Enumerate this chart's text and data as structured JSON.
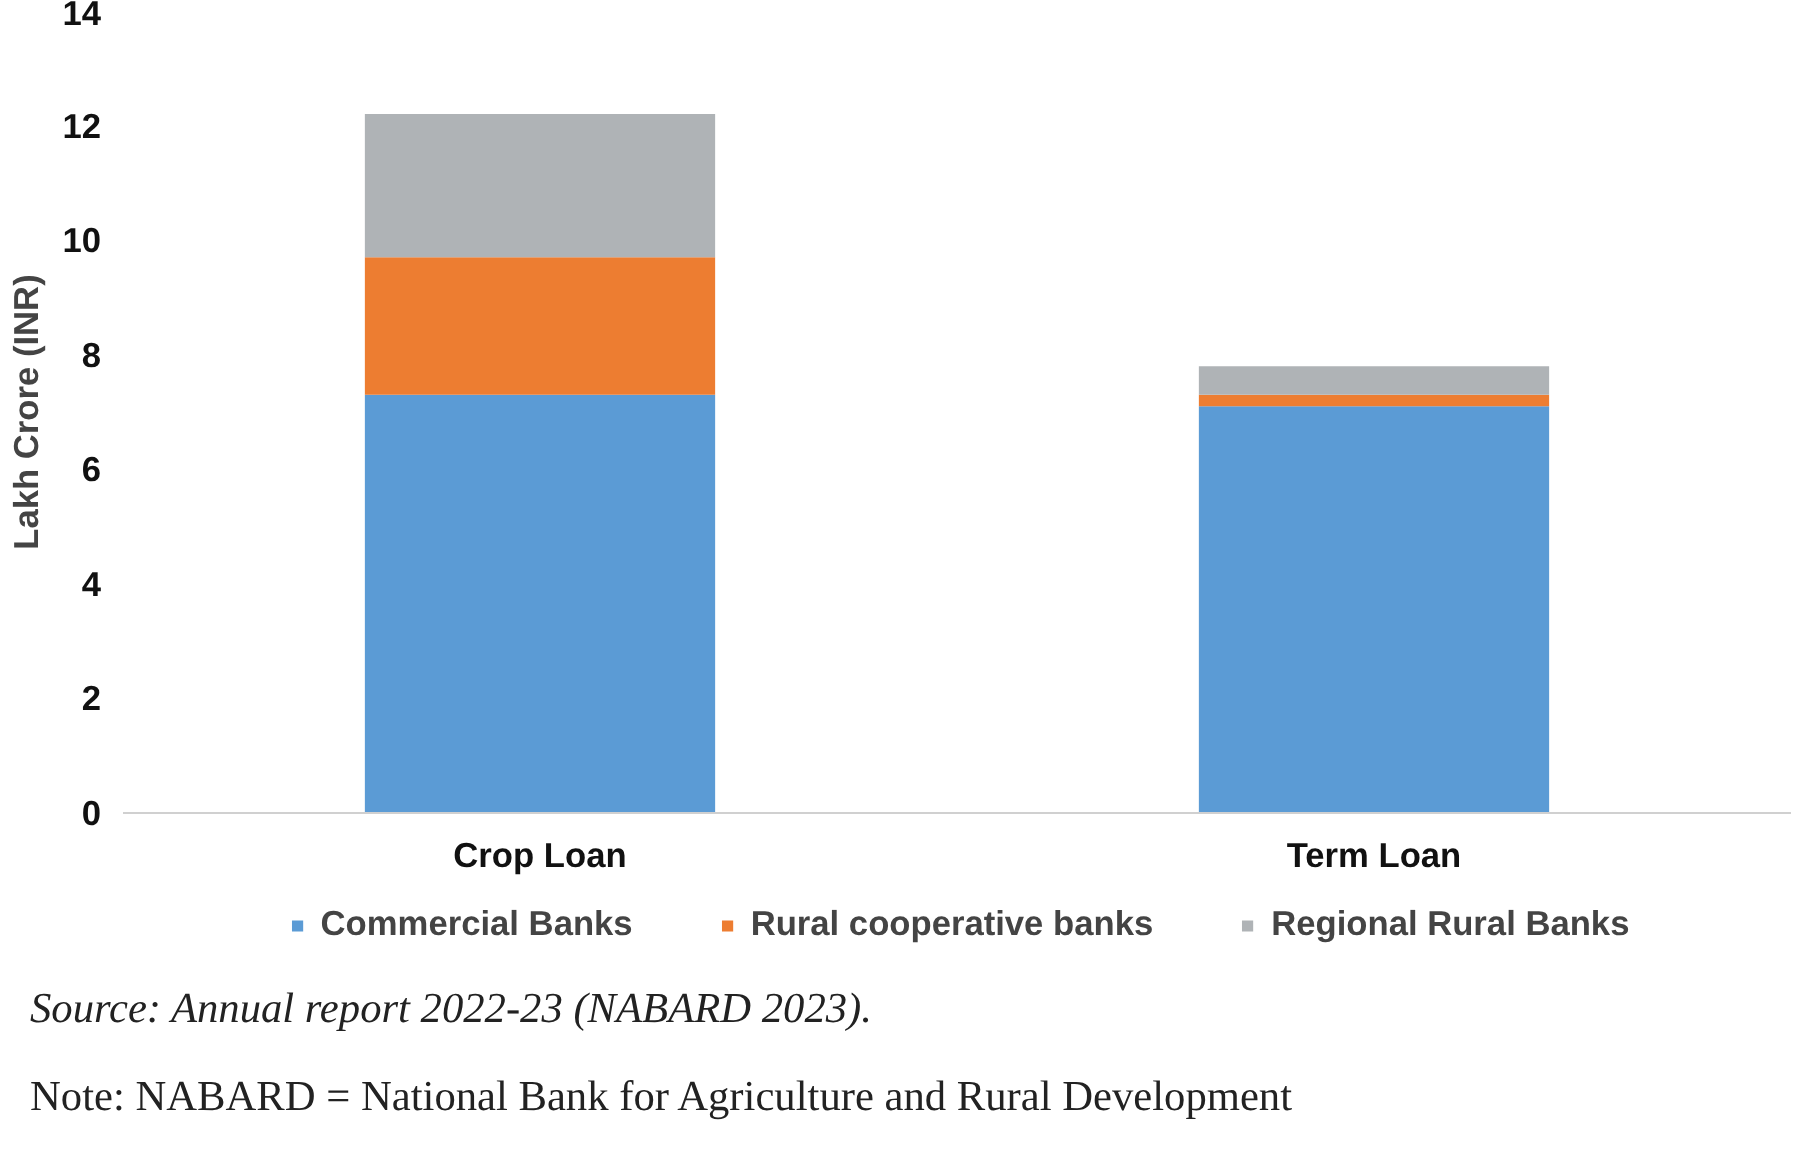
{
  "chart_data": {
    "type": "bar",
    "stacked": true,
    "ylabel": "Lakh Crore (INR)",
    "categories": [
      "Crop Loan",
      "Term Loan"
    ],
    "series": [
      {
        "name": "Commercial Banks",
        "color": "#5b9bd5",
        "values": [
          7.3,
          7.1
        ]
      },
      {
        "name": "Rural cooperative banks",
        "color": "#ed7d31",
        "values": [
          2.4,
          0.2
        ]
      },
      {
        "name": "Regional Rural Banks",
        "color": "#afb3b6",
        "values": [
          2.5,
          0.5
        ]
      }
    ],
    "ylim": [
      0,
      14
    ],
    "yticks": [
      0,
      2,
      4,
      6,
      8,
      10,
      12,
      14
    ],
    "grid": false,
    "legend": "bottom",
    "annotations": [
      "Source: Annual report 2022-23 (NABARD 2023).",
      "Note: NABARD = National Bank for Agriculture and Rural Development"
    ]
  }
}
